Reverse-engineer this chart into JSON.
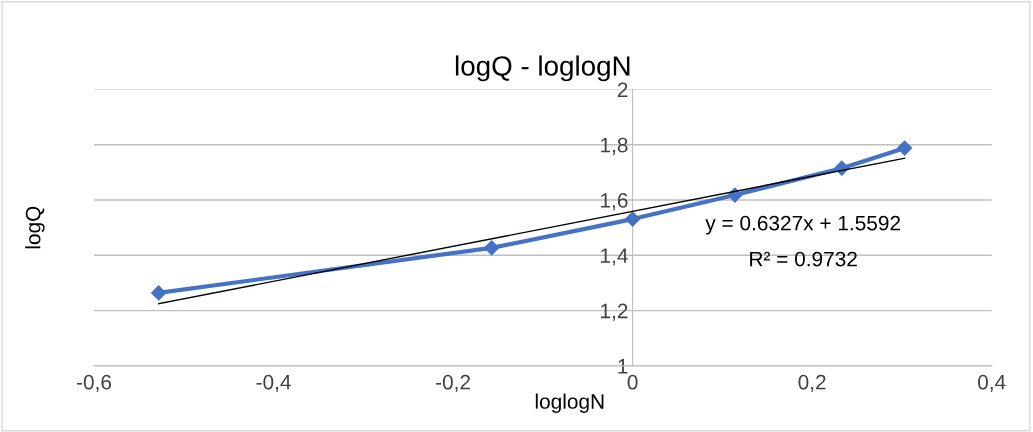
{
  "chart_data": {
    "type": "line",
    "title": "logQ - loglogN",
    "xlabel": "loglogN",
    "ylabel": "logQ",
    "xlim": [
      -0.6,
      0.4
    ],
    "ylim": [
      1,
      2
    ],
    "xticks": [
      {
        "value": -0.6,
        "label": "-0,6"
      },
      {
        "value": -0.4,
        "label": "-0,4"
      },
      {
        "value": -0.2,
        "label": "-0,2"
      },
      {
        "value": 0,
        "label": "0"
      },
      {
        "value": 0.2,
        "label": "0,2"
      },
      {
        "value": 0.4,
        "label": "0,4"
      }
    ],
    "yticks": [
      {
        "value": 1,
        "label": "1"
      },
      {
        "value": 1.2,
        "label": "1,2"
      },
      {
        "value": 1.4,
        "label": "1,4"
      },
      {
        "value": 1.6,
        "label": "1,6"
      },
      {
        "value": 1.8,
        "label": "1,8"
      },
      {
        "value": 2,
        "label": "2"
      }
    ],
    "grid": "y",
    "marker": "diamond",
    "line_style": "solid",
    "series": [
      {
        "color": "#4472c4",
        "x": [
          -0.528,
          -0.157,
          0,
          0.114,
          0.233,
          0.303
        ],
        "values": [
          1.264,
          1.427,
          1.531,
          1.618,
          1.715,
          1.788
        ]
      },
      {
        "color": "#000000",
        "marker": "none",
        "x": [
          -0.528,
          0.303
        ],
        "values": [
          1.225,
          1.751
        ]
      }
    ],
    "annotations": [
      "y = 0.6327x + 1.5592",
      "R² = 0.9732"
    ]
  }
}
